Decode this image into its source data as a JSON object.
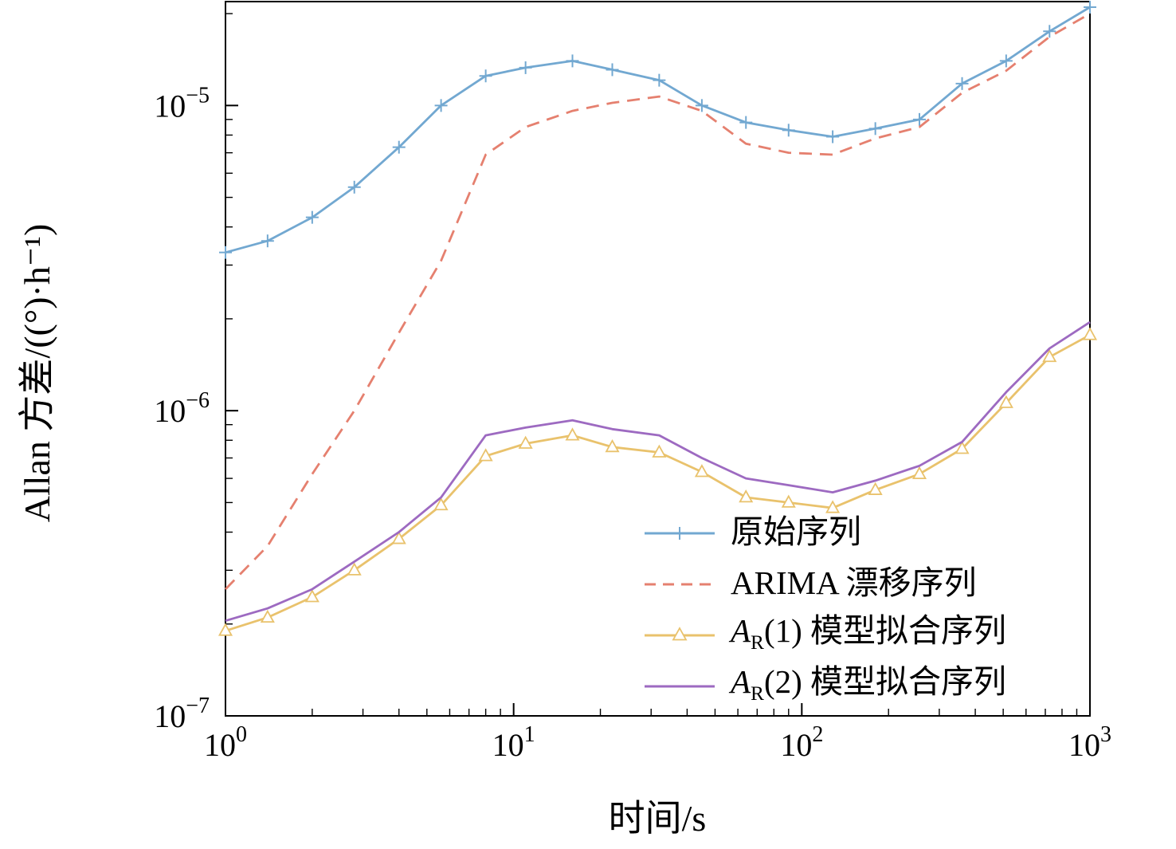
{
  "chart_data": {
    "type": "line",
    "title": "",
    "xlabel": "时间/s",
    "ylabel": "Allan 方差/((°)·h⁻¹)",
    "x_scale": "log",
    "y_scale": "log",
    "xlim": [
      1,
      1000
    ],
    "ylim": [
      1e-07,
      2.19e-05
    ],
    "xticks_exponents": [
      0,
      1,
      2,
      3
    ],
    "yticks_exponents": [
      -7,
      -6,
      -5
    ],
    "grid": false,
    "legend_position": "inside-bottom-right",
    "x": [
      1,
      1.4,
      2,
      2.8,
      4,
      5.6,
      8,
      11,
      16,
      22,
      32,
      45,
      64,
      90,
      128,
      180,
      256,
      360,
      512,
      724,
      1000
    ],
    "series": [
      {
        "name": "原始序列",
        "color": "#72a8d1",
        "style": "solid",
        "marker": "plus",
        "values": [
          3.3e-06,
          3.6e-06,
          4.3e-06,
          5.4e-06,
          7.3e-06,
          1e-05,
          1.25e-05,
          1.33e-05,
          1.4e-05,
          1.31e-05,
          1.21e-05,
          1e-05,
          8.8e-06,
          8.3e-06,
          7.9e-06,
          8.4e-06,
          9e-06,
          1.18e-05,
          1.4e-05,
          1.75e-05,
          2.1e-05
        ]
      },
      {
        "name": "ARIMA 漂移序列",
        "color": "#e5806f",
        "style": "dashed",
        "marker": "none",
        "values": [
          2.6e-07,
          3.6e-07,
          6.2e-07,
          1e-06,
          1.8e-06,
          3.1e-06,
          6.9e-06,
          8.5e-06,
          9.6e-06,
          1.02e-05,
          1.07e-05,
          9.6e-06,
          7.5e-06,
          7e-06,
          6.9e-06,
          7.8e-06,
          8.5e-06,
          1.1e-05,
          1.3e-05,
          1.68e-05,
          2e-05
        ]
      },
      {
        "name": "A_R(1) 模型拟合序列",
        "color": "#e9c26c",
        "style": "solid",
        "marker": "triangle",
        "values": [
          1.9e-07,
          2.1e-07,
          2.45e-07,
          3e-07,
          3.8e-07,
          4.9e-07,
          7.1e-07,
          7.8e-07,
          8.3e-07,
          7.6e-07,
          7.3e-07,
          6.3e-07,
          5.2e-07,
          5e-07,
          4.8e-07,
          5.5e-07,
          6.2e-07,
          7.5e-07,
          1.06e-06,
          1.5e-06,
          1.77e-06
        ]
      },
      {
        "name": "A_R(2) 模型拟合序列",
        "color": "#9d6ac1",
        "style": "solid",
        "marker": "none",
        "values": [
          2.05e-07,
          2.25e-07,
          2.6e-07,
          3.2e-07,
          4e-07,
          5.2e-07,
          8.3e-07,
          8.8e-07,
          9.3e-07,
          8.7e-07,
          8.3e-07,
          7e-07,
          6e-07,
          5.7e-07,
          5.4e-07,
          5.9e-07,
          6.6e-07,
          7.9e-07,
          1.15e-06,
          1.6e-06,
          1.95e-06
        ]
      }
    ]
  }
}
